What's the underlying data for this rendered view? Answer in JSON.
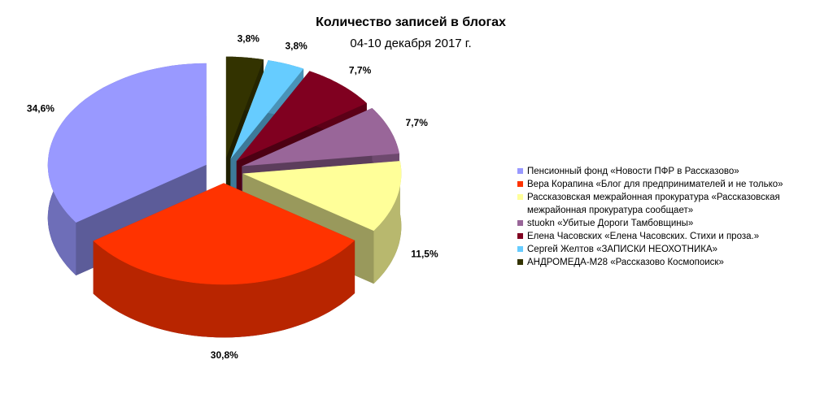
{
  "chart_data": {
    "type": "pie",
    "title": "Количество записей в блогах",
    "subtitle": "04-10 декабря 2017 г.",
    "categories": [
      "Пенсионный фонд «Новости ПФР в Рассказово»",
      "Вера Корапина «Блог для предпринимателей и не только»",
      "Рассказовская межрайонная прокуратура «Рассказовская межрайонная прокуратура сообщает»",
      "stuokn «Убитые Дороги Тамбовщины»",
      "Елена Часовских «Елена Часовских. Стихи и проза.»",
      "Сергей Желтов «ЗАПИСКИ НЕОХОТНИКА»",
      "АНДРОМЕДА-М28 «Рассказово Космопоиск»"
    ],
    "values": [
      34.6,
      30.8,
      11.5,
      7.7,
      7.7,
      3.8,
      3.8
    ],
    "value_labels": [
      "34,6%",
      "30,8%",
      "11,5%",
      "7,7%",
      "7,7%",
      "3,8%",
      "3,8%"
    ],
    "colors": [
      "#9999ff",
      "#ff3300",
      "#ffff99",
      "#996699",
      "#800020",
      "#66ccff",
      "#333300"
    ],
    "legend": "right"
  }
}
